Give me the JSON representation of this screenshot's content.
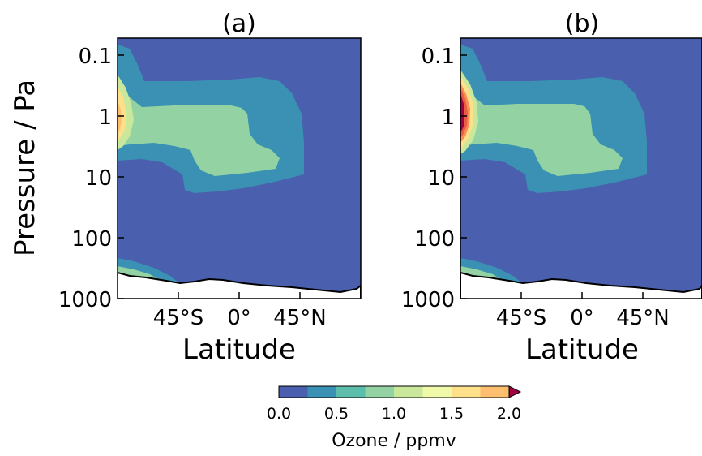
{
  "chart_data": [
    {
      "type": "heatmap",
      "title": "(a)",
      "xlabel": "Latitude",
      "ylabel": "Pressure / Pa",
      "xlim": [
        -90,
        90
      ],
      "ylim": [
        1000,
        0.06
      ],
      "y_scale": "log",
      "xticks": [
        "45°S",
        "0°",
        "45°N"
      ],
      "yticks": [
        "0.1",
        "1",
        "10",
        "100",
        "1000"
      ],
      "regions": [
        {
          "level": "0.0–0.25",
          "description": "background"
        },
        {
          "level": "0.25–0.5",
          "location": "southern mid-upper atmosphere 0.3–10 Pa, extending to 60°N"
        },
        {
          "level": "0.5–0.75",
          "location": "1–10 Pa, 75°S–45°N"
        },
        {
          "level": "0.75–1.25",
          "location": "near 90°S, 0.5–4 Pa"
        },
        {
          "level": "1.25–1.5",
          "location": "peak near 90°S, ~1 Pa"
        },
        {
          "level": "0.25–0.75",
          "location": "near surface around 60°S, 400–700 Pa"
        }
      ],
      "max_value": 1.5
    },
    {
      "type": "heatmap",
      "title": "(b)",
      "xlabel": "Latitude",
      "ylabel": "",
      "xlim": [
        -90,
        90
      ],
      "ylim": [
        1000,
        0.06
      ],
      "y_scale": "log",
      "xticks": [
        "45°S",
        "0°",
        "45°N"
      ],
      "yticks": [
        "0.1",
        "1",
        "10",
        "100",
        "1000"
      ],
      "regions": [
        {
          "level": "0.0–0.25",
          "description": "background"
        },
        {
          "level": "0.25–0.5",
          "location": "southern mid-upper atmosphere 0.3–10 Pa, extending to 60°N"
        },
        {
          "level": "0.5–0.75",
          "location": "1–10 Pa, 75°S–45°N"
        },
        {
          "level": "0.75–1.75",
          "location": "near 90°S, 0.4–5 Pa"
        },
        {
          "level": "1.75–2.0",
          "location": "peak near 90°S, ~1 Pa"
        },
        {
          "level": "0.25–0.75",
          "location": "near surface around 60°S, 400–700 Pa"
        }
      ],
      "max_value": 2.0
    }
  ],
  "colorbar": {
    "label": "Ozone / ppmv",
    "ticks": [
      "0.0",
      "0.5",
      "1.0",
      "1.5",
      "2.0"
    ],
    "range": [
      0.0,
      2.0
    ],
    "extend": "max",
    "colors": [
      "#4a5fad",
      "#3b91b3",
      "#5bbdaa",
      "#93d3a3",
      "#c9e89c",
      "#f0f8a9",
      "#fee08b",
      "#fdbf6f",
      "#f98e52",
      "#e85c47",
      "#c9314b",
      "#9e0142"
    ]
  }
}
